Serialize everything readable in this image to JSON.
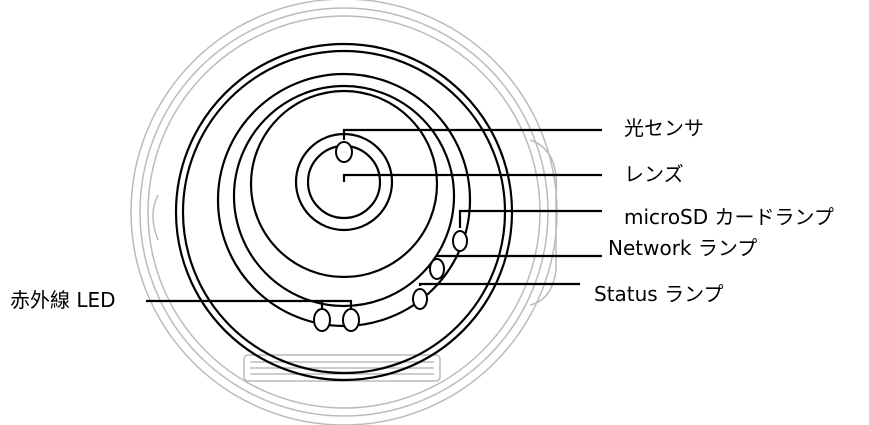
{
  "labels": {
    "light_sensor": "光センサ",
    "lens": "レンズ",
    "microsd_lamp": "microSD カードランプ",
    "network_lamp": "Network ランプ",
    "status_lamp": "Status ランプ",
    "ir_led": "赤外線 LED"
  },
  "colors": {
    "outline": "#000000",
    "faint_outline": "#bbbbbb",
    "background": "#ffffff"
  }
}
